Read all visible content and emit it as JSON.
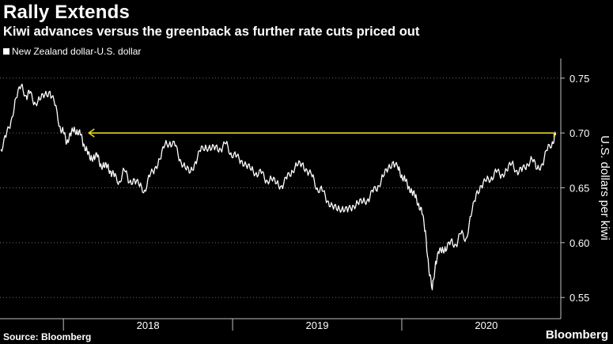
{
  "title": "Rally Extends",
  "subtitle": "Kiwi advances versus the greenback as further rate cuts priced out",
  "source": "Source: Bloomberg",
  "brand": "Bloomberg",
  "colors": {
    "background": "#000000",
    "series": "#ffffff",
    "annotation": "#e6d21e",
    "grid": "#6b6b6b",
    "text": "#ffffff"
  },
  "chart_data": {
    "type": "line",
    "title": "Rally Extends",
    "subtitle": "Kiwi advances versus the greenback as further rate cuts priced out",
    "xlabel": "",
    "ylabel": "U.S. dollars per kiwi",
    "ylim": [
      0.535,
      0.765
    ],
    "y_ticks": [
      0.55,
      0.6,
      0.65,
      0.7,
      0.75
    ],
    "y_tick_labels": [
      "0.55",
      "0.60",
      "0.65",
      "0.70",
      "0.75"
    ],
    "x_range": [
      2017.625,
      2020.94
    ],
    "x_tick_labels": [
      "2018",
      "2019",
      "2020"
    ],
    "x_tick_centers": [
      2018.5,
      2019.5,
      2020.5
    ],
    "x_year_separators": [
      2018.0,
      2019.0,
      2020.0
    ],
    "legend": [
      "New Zealand dollar-U.S. dollar"
    ],
    "grid": "horizontal dashed",
    "annotation": {
      "type": "arrow",
      "label": "",
      "value": 0.7,
      "x_from": 2020.9,
      "x_to": 2018.15
    },
    "series": [
      {
        "name": "New Zealand dollar-U.S. dollar",
        "x": [
          2017.63,
          2017.66,
          2017.69,
          2017.72,
          2017.75,
          2017.78,
          2017.8,
          2017.83,
          2017.86,
          2017.89,
          2017.92,
          2017.95,
          2017.98,
          2018.0,
          2018.02,
          2018.04,
          2018.06,
          2018.08,
          2018.1,
          2018.12,
          2018.14,
          2018.16,
          2018.18,
          2018.2,
          2018.22,
          2018.24,
          2018.26,
          2018.28,
          2018.3,
          2018.33,
          2018.36,
          2018.39,
          2018.42,
          2018.45,
          2018.48,
          2018.51,
          2018.54,
          2018.57,
          2018.6,
          2018.63,
          2018.66,
          2018.69,
          2018.72,
          2018.75,
          2018.78,
          2018.81,
          2018.84,
          2018.87,
          2018.9,
          2018.93,
          2018.96,
          2018.99,
          2019.02,
          2019.05,
          2019.08,
          2019.11,
          2019.14,
          2019.17,
          2019.2,
          2019.23,
          2019.26,
          2019.29,
          2019.32,
          2019.35,
          2019.38,
          2019.41,
          2019.44,
          2019.47,
          2019.5,
          2019.53,
          2019.56,
          2019.59,
          2019.62,
          2019.65,
          2019.68,
          2019.71,
          2019.74,
          2019.77,
          2019.8,
          2019.83,
          2019.86,
          2019.89,
          2019.92,
          2019.95,
          2019.98,
          2020.0,
          2020.02,
          2020.04,
          2020.06,
          2020.08,
          2020.1,
          2020.12,
          2020.14,
          2020.16,
          2020.18,
          2020.2,
          2020.22,
          2020.24,
          2020.26,
          2020.29,
          2020.32,
          2020.35,
          2020.38,
          2020.41,
          2020.44,
          2020.47,
          2020.5,
          2020.53,
          2020.56,
          2020.59,
          2020.62,
          2020.65,
          2020.68,
          2020.71,
          2020.74,
          2020.77,
          2020.8,
          2020.83,
          2020.86,
          2020.89,
          2020.91
        ],
        "values": [
          0.685,
          0.696,
          0.711,
          0.732,
          0.743,
          0.734,
          0.736,
          0.728,
          0.73,
          0.735,
          0.738,
          0.725,
          0.706,
          0.7,
          0.691,
          0.7,
          0.701,
          0.703,
          0.698,
          0.69,
          0.684,
          0.675,
          0.68,
          0.678,
          0.672,
          0.669,
          0.67,
          0.665,
          0.66,
          0.656,
          0.666,
          0.655,
          0.658,
          0.651,
          0.648,
          0.66,
          0.668,
          0.676,
          0.689,
          0.692,
          0.688,
          0.676,
          0.668,
          0.664,
          0.674,
          0.683,
          0.689,
          0.684,
          0.688,
          0.685,
          0.69,
          0.682,
          0.678,
          0.675,
          0.671,
          0.666,
          0.664,
          0.663,
          0.657,
          0.658,
          0.654,
          0.652,
          0.658,
          0.666,
          0.67,
          0.672,
          0.666,
          0.66,
          0.65,
          0.647,
          0.638,
          0.634,
          0.629,
          0.633,
          0.628,
          0.634,
          0.636,
          0.637,
          0.64,
          0.646,
          0.652,
          0.66,
          0.668,
          0.674,
          0.666,
          0.662,
          0.656,
          0.651,
          0.647,
          0.641,
          0.636,
          0.626,
          0.611,
          0.575,
          0.557,
          0.583,
          0.59,
          0.596,
          0.592,
          0.602,
          0.598,
          0.608,
          0.604,
          0.624,
          0.645,
          0.652,
          0.656,
          0.66,
          0.664,
          0.662,
          0.666,
          0.672,
          0.666,
          0.665,
          0.672,
          0.676,
          0.667,
          0.672,
          0.684,
          0.692,
          0.698
        ]
      }
    ]
  }
}
